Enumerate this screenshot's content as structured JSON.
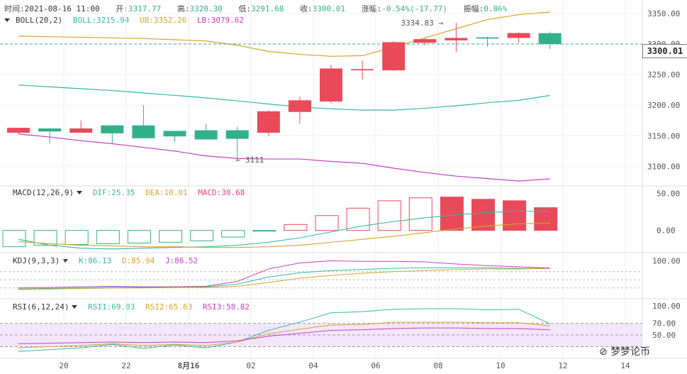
{
  "header": {
    "time_label": "时间:",
    "time": "2021-08-16 11:00",
    "open_label": "开:",
    "open": "3317.77",
    "high_label": "高:",
    "high": "3320.30",
    "low_label": "低:",
    "low": "3291.68",
    "close_label": "收:",
    "close": "3300.01",
    "change_label": "涨幅:",
    "change": "-0.54%(-17.77)",
    "amplitude_label": "振幅:",
    "amplitude": "0.86%"
  },
  "indicators": {
    "boll": {
      "name": "BOLL(20,2)",
      "boll": "BOLL:3215.94",
      "ub": "UB:3352.26",
      "lb": "LB:3079.62"
    },
    "macd": {
      "name": "MACD(12,26,9)",
      "dif": "DIF:25.35",
      "dea": "DEA:10.01",
      "macd": "MACD:30.68"
    },
    "kdj": {
      "name": "KDJ(9,3,3)",
      "k": "K:86.13",
      "d": "D:85.94",
      "j": "J:86.52"
    },
    "rsi": {
      "name": "RSI(6,12,24)",
      "rsi1": "RSI1:69.03",
      "rsi2": "RSI2:65.63",
      "rsi3": "RSI3:58.82"
    }
  },
  "current_price": "3300.01",
  "annotations": {
    "high_mark": "3334.83",
    "low_mark": "3111"
  },
  "watermark": "梦梦论币",
  "colors": {
    "up": "#e84a5a",
    "down": "#32b08c",
    "mid": "#33b9a4",
    "ub": "#d4a52a",
    "lb": "#c440c4"
  },
  "chart_data": {
    "type": "candlestick",
    "x_ticks": [
      "20",
      "22",
      "8月16",
      "02",
      "04",
      "06",
      "08",
      "10",
      "12",
      "14"
    ],
    "price_axis": {
      "ticks": [
        "3350.00",
        "3300.00",
        "3250.00",
        "3200.00",
        "3150.00",
        "3100.00"
      ],
      "ylim": [
        3068,
        3372
      ]
    },
    "candles": [
      {
        "o": 3155,
        "c": 3163,
        "h": 3163,
        "l": 3153
      },
      {
        "o": 3162,
        "c": 3157,
        "h": 3163,
        "l": 3137
      },
      {
        "o": 3155,
        "c": 3162,
        "h": 3175,
        "l": 3155
      },
      {
        "o": 3167,
        "c": 3154,
        "h": 3167,
        "l": 3138
      },
      {
        "o": 3167,
        "c": 3146,
        "h": 3200,
        "l": 3146
      },
      {
        "o": 3158,
        "c": 3149,
        "h": 3158,
        "l": 3140
      },
      {
        "o": 3159,
        "c": 3144,
        "h": 3170,
        "l": 3144
      },
      {
        "o": 3159,
        "c": 3145,
        "h": 3165,
        "l": 3111
      },
      {
        "o": 3155,
        "c": 3190,
        "h": 3192,
        "l": 3150
      },
      {
        "o": 3189,
        "c": 3208,
        "h": 3214,
        "l": 3170
      },
      {
        "o": 3206,
        "c": 3260,
        "h": 3266,
        "l": 3203
      },
      {
        "o": 3257,
        "c": 3259,
        "h": 3273,
        "l": 3242
      },
      {
        "o": 3257,
        "c": 3303,
        "h": 3305,
        "l": 3256
      },
      {
        "o": 3302,
        "c": 3308,
        "h": 3310,
        "l": 3298
      },
      {
        "o": 3306,
        "c": 3310,
        "h": 3334.83,
        "l": 3287
      },
      {
        "o": 3311,
        "c": 3309,
        "h": 3312,
        "l": 3296
      },
      {
        "o": 3310,
        "c": 3318,
        "h": 3319,
        "l": 3302
      },
      {
        "o": 3317.77,
        "c": 3300.01,
        "h": 3320.3,
        "l": 3291.68
      }
    ],
    "boll_mid": [
      3233,
      3230,
      3227,
      3224,
      3220,
      3216,
      3212,
      3207,
      3202,
      3197,
      3194,
      3192,
      3192,
      3195,
      3199,
      3204,
      3208,
      3215.94
    ],
    "boll_ub": [
      3313,
      3312,
      3311,
      3310,
      3309,
      3307,
      3305,
      3298,
      3288,
      3283,
      3280,
      3281,
      3295,
      3310,
      3325,
      3340,
      3348,
      3352.26
    ],
    "boll_lb": [
      3153,
      3148,
      3142,
      3137,
      3131,
      3125,
      3117,
      3113,
      3112,
      3112,
      3108,
      3105,
      3097,
      3090,
      3084,
      3080,
      3076,
      3079.62
    ],
    "macd": {
      "ticks": [
        "50.00",
        "0.00"
      ],
      "ylim": [
        -30,
        60
      ],
      "hist": [
        -22,
        -20,
        -19,
        -18,
        -17,
        -16,
        -14,
        -9,
        -1,
        8,
        20,
        30,
        40,
        44,
        45,
        42,
        40,
        30.68
      ],
      "dif": [
        -12,
        -20,
        -24,
        -25,
        -24,
        -23,
        -22,
        -20,
        -16,
        -10,
        -2,
        6,
        12,
        17,
        21,
        24,
        26,
        25.35
      ],
      "dea": [
        -15,
        -18,
        -20,
        -21,
        -22,
        -22,
        -23,
        -23,
        -22,
        -20,
        -16,
        -12,
        -8,
        -3,
        2,
        6,
        9,
        10.01
      ]
    },
    "kdj": {
      "ticks": [
        "100.00"
      ],
      "ylim": [
        30,
        115
      ],
      "k": [
        48,
        49,
        50,
        51,
        51,
        52,
        52,
        57,
        70,
        78,
        82,
        84,
        86,
        87,
        87,
        87,
        86,
        86.13
      ],
      "d": [
        47,
        48,
        49,
        50,
        50,
        51,
        51,
        53,
        60,
        68,
        73,
        77,
        80,
        82,
        84,
        85,
        85,
        85.94
      ],
      "j": [
        50,
        51,
        52,
        53,
        52,
        52,
        53,
        62,
        85,
        96,
        100,
        99,
        99,
        98,
        94,
        91,
        89,
        86.52
      ]
    },
    "rsi": {
      "ticks": [
        "100.00",
        "70.00",
        "50.00"
      ],
      "ylim": [
        10,
        112
      ],
      "band": [
        30,
        70
      ],
      "rsi1": [
        22,
        25,
        28,
        34,
        27,
        33,
        28,
        38,
        58,
        72,
        88,
        90,
        94,
        95,
        95,
        93,
        94,
        69.03
      ],
      "rsi2": [
        28,
        30,
        32,
        35,
        32,
        34,
        32,
        38,
        52,
        60,
        67,
        68,
        72,
        72,
        72,
        71,
        71,
        65.63
      ],
      "rsi3": [
        35,
        36,
        37,
        38,
        37,
        38,
        37,
        40,
        48,
        53,
        58,
        59,
        61,
        62,
        62,
        61,
        61,
        58.82
      ]
    }
  }
}
